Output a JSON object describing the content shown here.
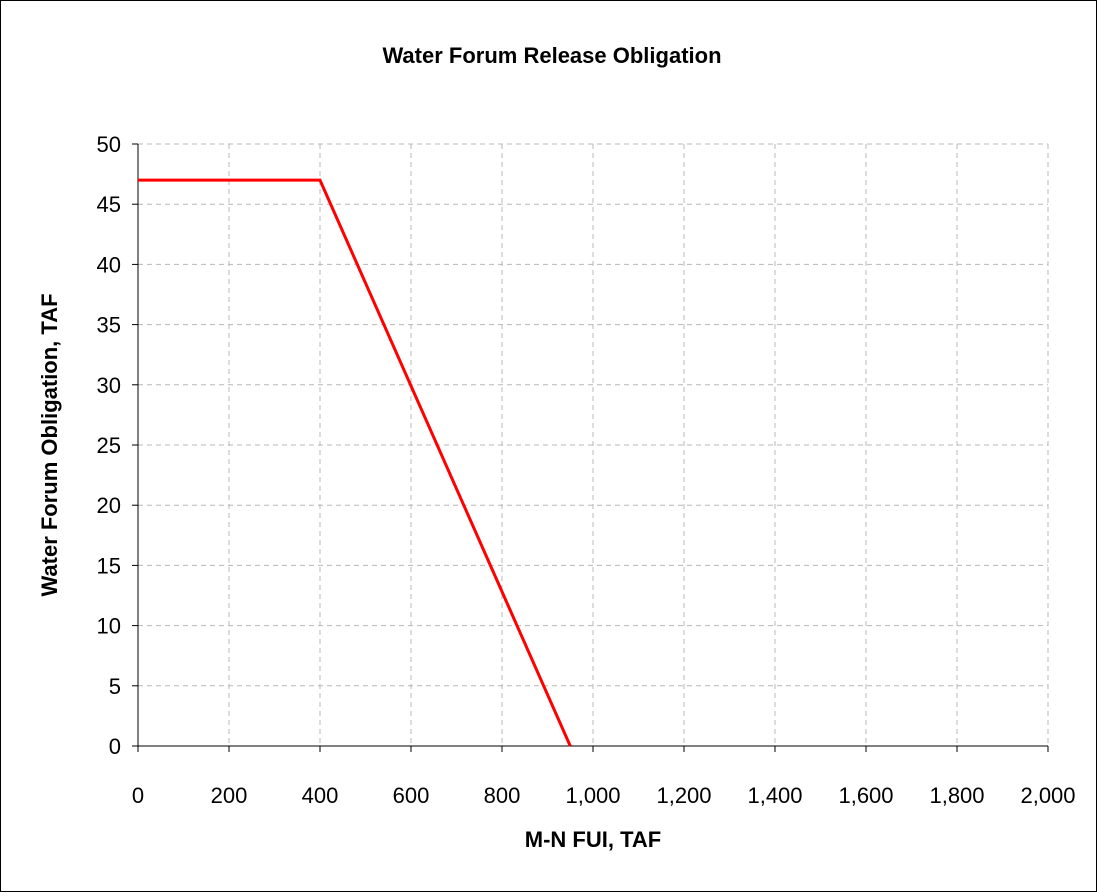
{
  "chart_data": {
    "type": "line",
    "title": "Water Forum Release Obligation",
    "xlabel": "M-N FUI, TAF",
    "ylabel": "Water Forum Obligation, TAF",
    "xlim": [
      0,
      2000
    ],
    "ylim": [
      0,
      50
    ],
    "x_ticks": [
      0,
      200,
      400,
      600,
      800,
      1000,
      1200,
      1400,
      1600,
      1800,
      2000
    ],
    "x_tick_labels": [
      "0",
      "200",
      "400",
      "600",
      "800",
      "1,000",
      "1,200",
      "1,400",
      "1,600",
      "1,800",
      "2,000"
    ],
    "y_ticks": [
      0,
      5,
      10,
      15,
      20,
      25,
      30,
      35,
      40,
      45,
      50
    ],
    "y_tick_labels": [
      "0",
      "5",
      "10",
      "15",
      "20",
      "25",
      "30",
      "35",
      "40",
      "45",
      "50"
    ],
    "grid": true,
    "legend": "none",
    "series": [
      {
        "color": "#ff0000",
        "x": [
          0,
          400,
          950
        ],
        "y": [
          47,
          47,
          0
        ]
      }
    ]
  }
}
